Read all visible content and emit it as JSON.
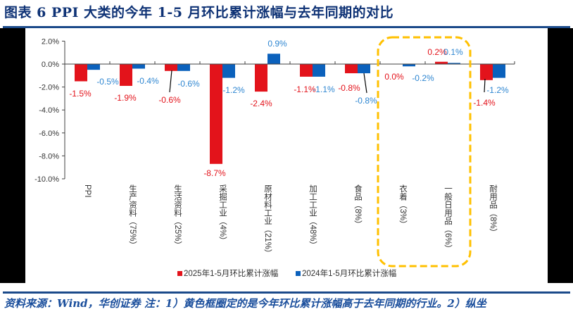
{
  "header": {
    "title": "图表 6   PPI 大类的今年 1-5 月环比累计涨幅与去年同期的对比"
  },
  "footer": {
    "note": "资料来源：Wind，华创证券  注：1）黄色框圈定的是今年环比累计涨幅高于去年同期的行业。2）纵坐"
  },
  "colors": {
    "series_2025": "#E3131B",
    "series_2024": "#0B61BC",
    "label_2025": "#E3131B",
    "label_2024": "#2E86D1",
    "highlight_box": "#FFC000",
    "title": "#0E3275",
    "rule": "#1B4A8A"
  },
  "chart_data": {
    "type": "bar",
    "title": "PPI 大类的今年 1-5 月环比累计涨幅与去年同期的对比",
    "xlabel": "",
    "ylabel": "",
    "ylim": [
      -10.0,
      2.0
    ],
    "yticks": [
      "2.0%",
      "0.0%",
      "-2.0%",
      "-4.0%",
      "-6.0%",
      "-8.0%",
      "-10.0%"
    ],
    "grid": false,
    "legend_position": "bottom",
    "categories": [
      "PPI",
      "生产资料（75%）",
      "生活资料（25%）",
      "采掘工业（4%）",
      "原材料工业（21%）",
      "加工工业（48%）",
      "食品（8%）",
      "衣着（3%）",
      "一般日用品（6%）",
      "耐用品（8%）"
    ],
    "series": [
      {
        "name": "2025年1-5月环比累计涨幅",
        "values": [
          -1.5,
          -1.9,
          -0.6,
          -8.7,
          -2.4,
          -1.1,
          -0.8,
          0.0,
          0.2,
          -1.4
        ],
        "labels": [
          "-1.5%",
          "-1.9%",
          "-0.6%",
          "-8.7%",
          "-2.4%",
          "-1.1%",
          "-0.8%",
          "0.0%",
          "0.2%",
          "-1.4%"
        ]
      },
      {
        "name": "2024年1-5月环比累计涨幅",
        "values": [
          -0.5,
          -0.4,
          -0.6,
          -1.2,
          0.9,
          -1.1,
          -0.8,
          -0.2,
          0.1,
          -1.2
        ],
        "labels": [
          "-0.5%",
          "-0.4%",
          "-0.6%",
          "-1.2%",
          "0.9%",
          "-1.1%",
          "-0.8%",
          "-0.2%",
          "0.1%",
          "-1.2%"
        ]
      }
    ],
    "annotations": [
      {
        "type": "dashed-rounded-box",
        "color": "#FFC000",
        "covers_categories": [
          "衣着（3%）",
          "一般日用品（6%）"
        ],
        "meaning": "今年环比累计涨幅高于去年同期的行业"
      }
    ]
  }
}
